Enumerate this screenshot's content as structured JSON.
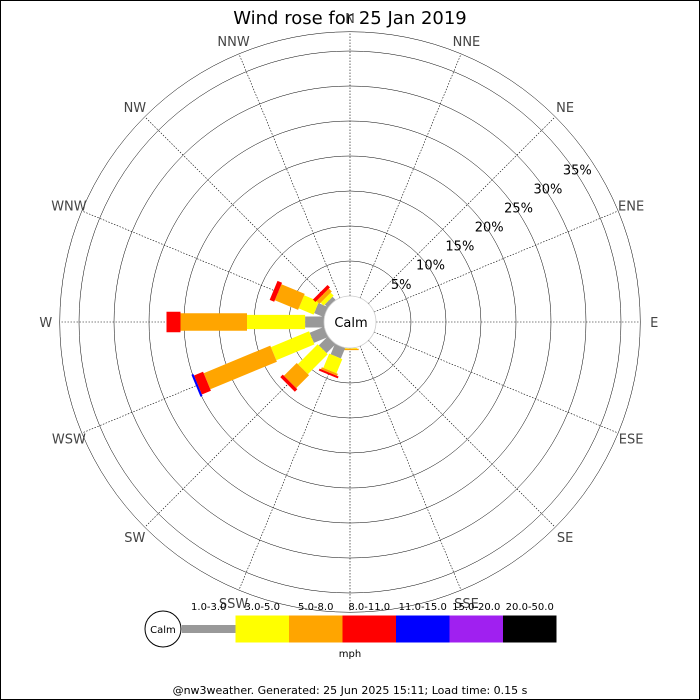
{
  "chart_data": {
    "type": "windrose",
    "title": "Wind rose for 25 Jan 2019",
    "unit": "mph",
    "calm_label": "Calm",
    "footer": "@nw3weather. Generated: 25 Jun 2025 15:11; Load time: 0.15 s",
    "directions": [
      "N",
      "NNE",
      "NE",
      "ENE",
      "E",
      "ESE",
      "SE",
      "SSE",
      "S",
      "SSW",
      "SW",
      "WSW",
      "W",
      "WNW",
      "NW",
      "NNW"
    ],
    "ring_labels": [
      "5%",
      "10%",
      "15%",
      "20%",
      "25%",
      "30%",
      "35%"
    ],
    "ring_max_percent": 35,
    "bins": [
      {
        "label": "1.0-3.0",
        "color": "#999999"
      },
      {
        "label": "3.0-5.0",
        "color": "#ffff00"
      },
      {
        "label": "5.0-8.0",
        "color": "#ffa500"
      },
      {
        "label": "8.0-11.0",
        "color": "#ff0000"
      },
      {
        "label": "11.0-15.0",
        "color": "#0000ff"
      },
      {
        "label": "15.0-20.0",
        "color": "#a020f0"
      },
      {
        "label": "20.0-50.0",
        "color": "#000000"
      }
    ],
    "series": [
      {
        "direction": "N",
        "values": [
          0,
          0,
          0,
          0,
          0,
          0,
          0
        ]
      },
      {
        "direction": "NNE",
        "values": [
          0,
          0,
          0,
          0,
          0,
          0,
          0
        ]
      },
      {
        "direction": "NE",
        "values": [
          0,
          0,
          0,
          0,
          0,
          0,
          0
        ]
      },
      {
        "direction": "ENE",
        "values": [
          0,
          0,
          0,
          0,
          0,
          0,
          0
        ]
      },
      {
        "direction": "E",
        "values": [
          0,
          0,
          0,
          0,
          0,
          0,
          0
        ]
      },
      {
        "direction": "ESE",
        "values": [
          0,
          0,
          0,
          0,
          0,
          0,
          0
        ]
      },
      {
        "direction": "SE",
        "values": [
          0,
          0,
          0,
          0,
          0,
          0,
          0
        ]
      },
      {
        "direction": "SSE",
        "values": [
          0,
          0,
          0,
          0,
          0,
          0,
          0
        ]
      },
      {
        "direction": "S",
        "values": [
          0,
          0.1,
          0.2,
          0,
          0,
          0,
          0
        ]
      },
      {
        "direction": "SSW",
        "values": [
          1.6,
          2.2,
          0.3,
          0.3,
          0,
          0,
          0
        ]
      },
      {
        "direction": "SW",
        "values": [
          1.8,
          4.0,
          2.6,
          0.5,
          0,
          0,
          0
        ]
      },
      {
        "direction": "WSW",
        "values": [
          2.2,
          5.9,
          10.3,
          1.4,
          0.3,
          0,
          0
        ]
      },
      {
        "direction": "W",
        "values": [
          2.7,
          8.3,
          9.5,
          2.0,
          0,
          0,
          0
        ]
      },
      {
        "direction": "WNW",
        "values": [
          1.5,
          2.3,
          3.6,
          0.7,
          0,
          0,
          0
        ]
      },
      {
        "direction": "NW",
        "values": [
          0.6,
          0.6,
          0.6,
          0.5,
          0,
          0,
          0
        ]
      },
      {
        "direction": "NNW",
        "values": [
          0,
          0,
          0,
          0,
          0,
          0,
          0
        ]
      }
    ]
  }
}
